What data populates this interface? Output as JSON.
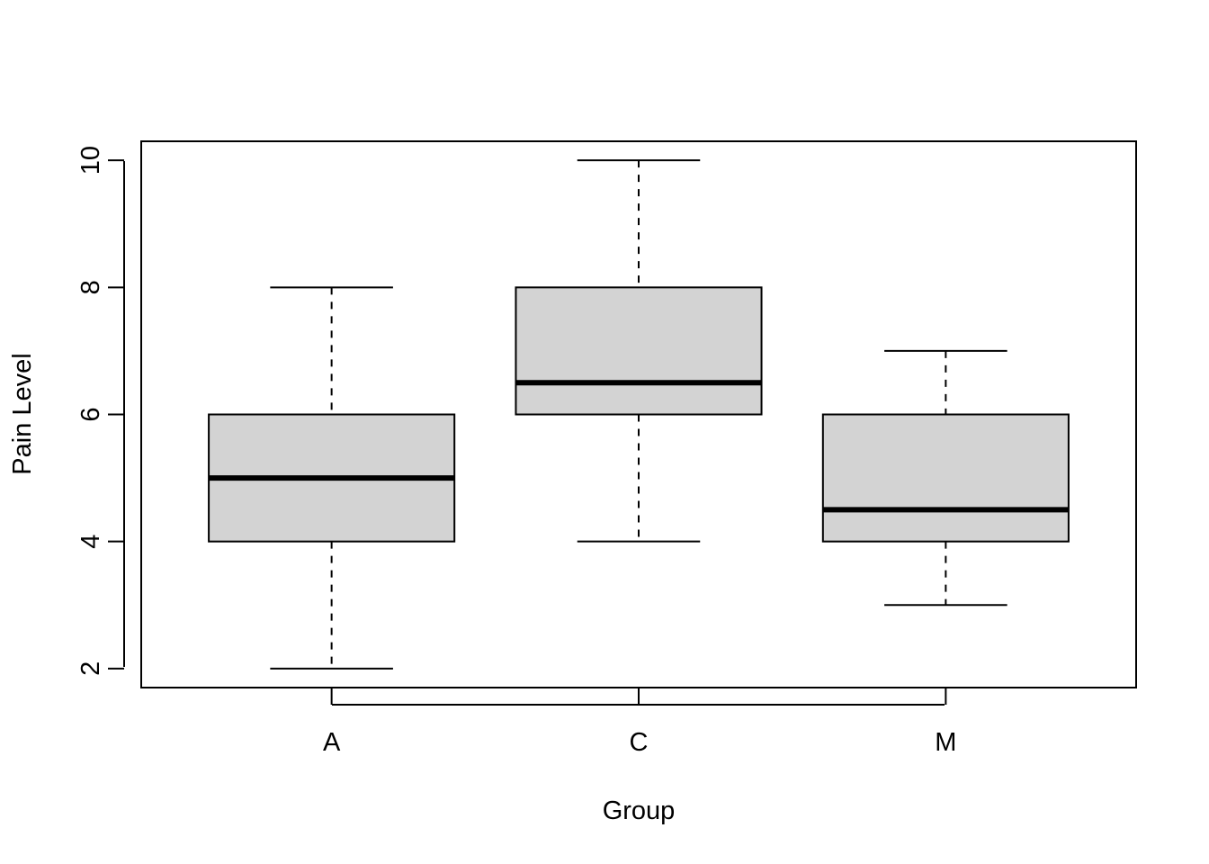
{
  "chart_data": {
    "type": "boxplot",
    "title": "",
    "xlabel": "Group",
    "ylabel": "Pain Level",
    "ylim": [
      1.7,
      10.3
    ],
    "yticks": [
      2,
      4,
      6,
      8,
      10
    ],
    "grid": false,
    "legend": "none",
    "colors": {
      "box_fill": "#d3d3d3",
      "stroke": "#000000",
      "background": "#ffffff"
    },
    "categories": [
      "A",
      "C",
      "M"
    ],
    "boxes": [
      {
        "category": "A",
        "whisker_low": 2,
        "q1": 4,
        "median": 5,
        "q3": 6,
        "whisker_high": 8
      },
      {
        "category": "C",
        "whisker_low": 4,
        "q1": 6,
        "median": 6.5,
        "q3": 8,
        "whisker_high": 10
      },
      {
        "category": "M",
        "whisker_low": 3,
        "q1": 4,
        "median": 4.5,
        "q3": 6,
        "whisker_high": 7
      }
    ]
  }
}
